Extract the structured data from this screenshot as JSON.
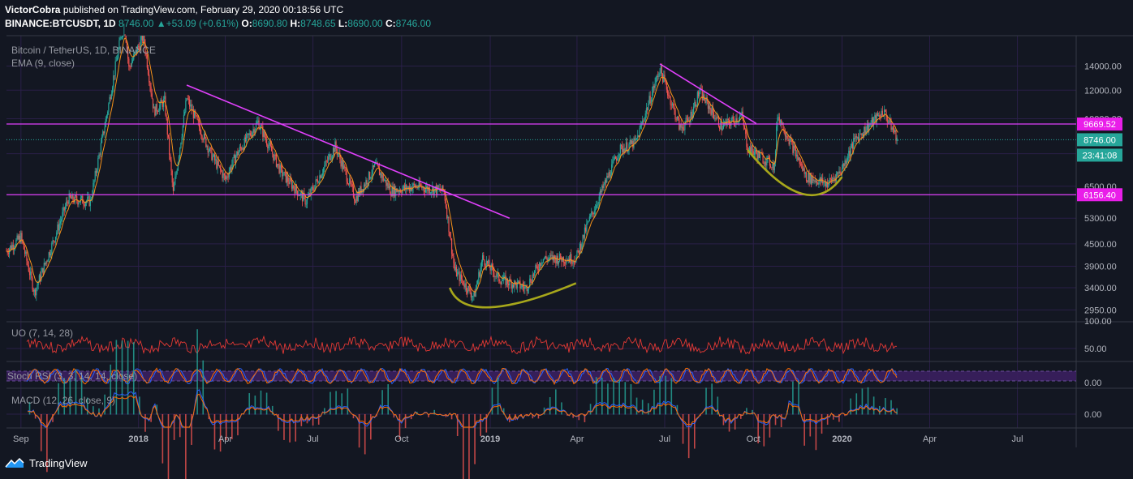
{
  "header": {
    "author": "VictorCobra",
    "published": "published on TradingView.com, February 29, 2020 00:18:56 UTC",
    "symbol": "BINANCE:BTCUSDT, 1D",
    "last": "8746.00",
    "change": "+53.09 (+0.61%)",
    "o_label": "O:",
    "o": "8690.80",
    "h_label": "H:",
    "h": "8748.65",
    "l_label": "L:",
    "l": "8690.00",
    "c_label": "C:",
    "c": "8746.00"
  },
  "legend": {
    "title": "Bitcoin / TetherUS, 1D, BINANCE",
    "ema": "EMA (9, close)",
    "uo": "UO (7, 14, 28)",
    "stoch": "Stoch RSI (3, 3, 14, 14, close)",
    "macd": "MACD (12, 26, close, 9)"
  },
  "footer": {
    "brand": "TradingView"
  },
  "colors": {
    "background": "#131722",
    "grid": "#2a1f48",
    "up": "#26a69a",
    "down": "#ef5350",
    "ema": "#f7931a",
    "trendline": "#e040fb",
    "arc": "#a7a71b",
    "uo": "#e53935",
    "stoch_k": "#2962ff",
    "stoch_d": "#ff6d00",
    "stoch_band": "#3b1f5f"
  },
  "chart_data": {
    "type": "candlestick",
    "title": "Bitcoin / TetherUS, 1D, BINANCE",
    "price_axis": {
      "scale": "log",
      "ticks": [
        "14000.00",
        "12000.00",
        "10000.00",
        "8000.00",
        "6500.00",
        "5300.00",
        "4500.00",
        "3900.00",
        "3400.00",
        "2950.00"
      ],
      "range": [
        2750,
        17000
      ]
    },
    "x_axis": {
      "ticks": [
        "Sep",
        "2018",
        "Apr",
        "Jul",
        "Oct",
        "2019",
        "Apr",
        "Jul",
        "Oct",
        "2020",
        "Apr",
        "Jul"
      ],
      "range": [
        "2017-08-17",
        "2020-08-31"
      ]
    },
    "series": [
      {
        "name": "BTCUSDT",
        "approx_path": [
          [
            "2017-08-17",
            4300
          ],
          [
            "2017-09-01",
            4700
          ],
          [
            "2017-09-15",
            3300
          ],
          [
            "2017-10-01",
            4300
          ],
          [
            "2017-10-20",
            6000
          ],
          [
            "2017-11-12",
            5900
          ],
          [
            "2017-11-28",
            9900
          ],
          [
            "2017-12-17",
            19000
          ],
          [
            "2017-12-22",
            13800
          ],
          [
            "2018-01-06",
            17000
          ],
          [
            "2018-01-17",
            10500
          ],
          [
            "2018-01-28",
            11200
          ],
          [
            "2018-02-06",
            6200
          ],
          [
            "2018-02-20",
            11400
          ],
          [
            "2018-03-17",
            8000
          ],
          [
            "2018-04-01",
            6800
          ],
          [
            "2018-04-12",
            7900
          ],
          [
            "2018-05-05",
            9800
          ],
          [
            "2018-05-29",
            7100
          ],
          [
            "2018-06-24",
            5900
          ],
          [
            "2018-07-24",
            8400
          ],
          [
            "2018-08-14",
            6000
          ],
          [
            "2018-09-04",
            7400
          ],
          [
            "2018-09-20",
            6300
          ],
          [
            "2018-10-15",
            6500
          ],
          [
            "2018-11-14",
            6300
          ],
          [
            "2018-11-25",
            3800
          ],
          [
            "2018-12-15",
            3200
          ],
          [
            "2018-12-24",
            4100
          ],
          [
            "2019-01-10",
            3600
          ],
          [
            "2019-02-07",
            3400
          ],
          [
            "2019-02-24",
            4100
          ],
          [
            "2019-03-31",
            4100
          ],
          [
            "2019-04-12",
            5100
          ],
          [
            "2019-05-15",
            8200
          ],
          [
            "2019-06-01",
            8600
          ],
          [
            "2019-06-26",
            13800
          ],
          [
            "2019-07-17",
            9400
          ],
          [
            "2019-07-26",
            9900
          ],
          [
            "2019-08-06",
            11900
          ],
          [
            "2019-08-29",
            9500
          ],
          [
            "2019-09-19",
            10200
          ],
          [
            "2019-09-25",
            8300
          ],
          [
            "2019-10-23",
            7400
          ],
          [
            "2019-10-26",
            10300
          ],
          [
            "2019-11-25",
            6900
          ],
          [
            "2019-12-17",
            6600
          ],
          [
            "2019-12-31",
            7200
          ],
          [
            "2020-01-15",
            8800
          ],
          [
            "2020-02-13",
            10500
          ],
          [
            "2020-02-28",
            8746
          ]
        ]
      }
    ],
    "horizontal_levels": [
      {
        "label": "9669.52",
        "value": 9669.52
      },
      {
        "label": "6156.40",
        "value": 6156.4
      }
    ],
    "price_labels": [
      {
        "label": "8746.00",
        "value": 8746.0
      },
      {
        "label": "23:41:08",
        "value": 8000
      }
    ],
    "trendlines": [
      {
        "from": [
          "2018-02-20",
          12400
        ],
        "to": [
          "2019-01-21",
          5300
        ]
      },
      {
        "from": [
          "2019-06-26",
          14200
        ],
        "to": [
          "2019-10-04",
          9700
        ]
      }
    ],
    "arcs": [
      {
        "from": [
          "2018-11-20",
          3400
        ],
        "bottom": [
          "2018-12-31",
          3000
        ],
        "to": [
          "2019-03-31",
          3500
        ]
      },
      {
        "from": [
          "2019-09-25",
          8200
        ],
        "bottom": [
          "2019-11-20",
          6200
        ],
        "to": [
          "2020-01-01",
          6900
        ]
      }
    ],
    "indicators": {
      "uo": {
        "ticks": [
          "100.00",
          "50.00"
        ],
        "range": [
          25,
          100
        ]
      },
      "stoch_rsi": {
        "ticks": [
          "0.00"
        ]
      },
      "macd": {
        "ticks": [
          "0.00"
        ]
      }
    }
  }
}
